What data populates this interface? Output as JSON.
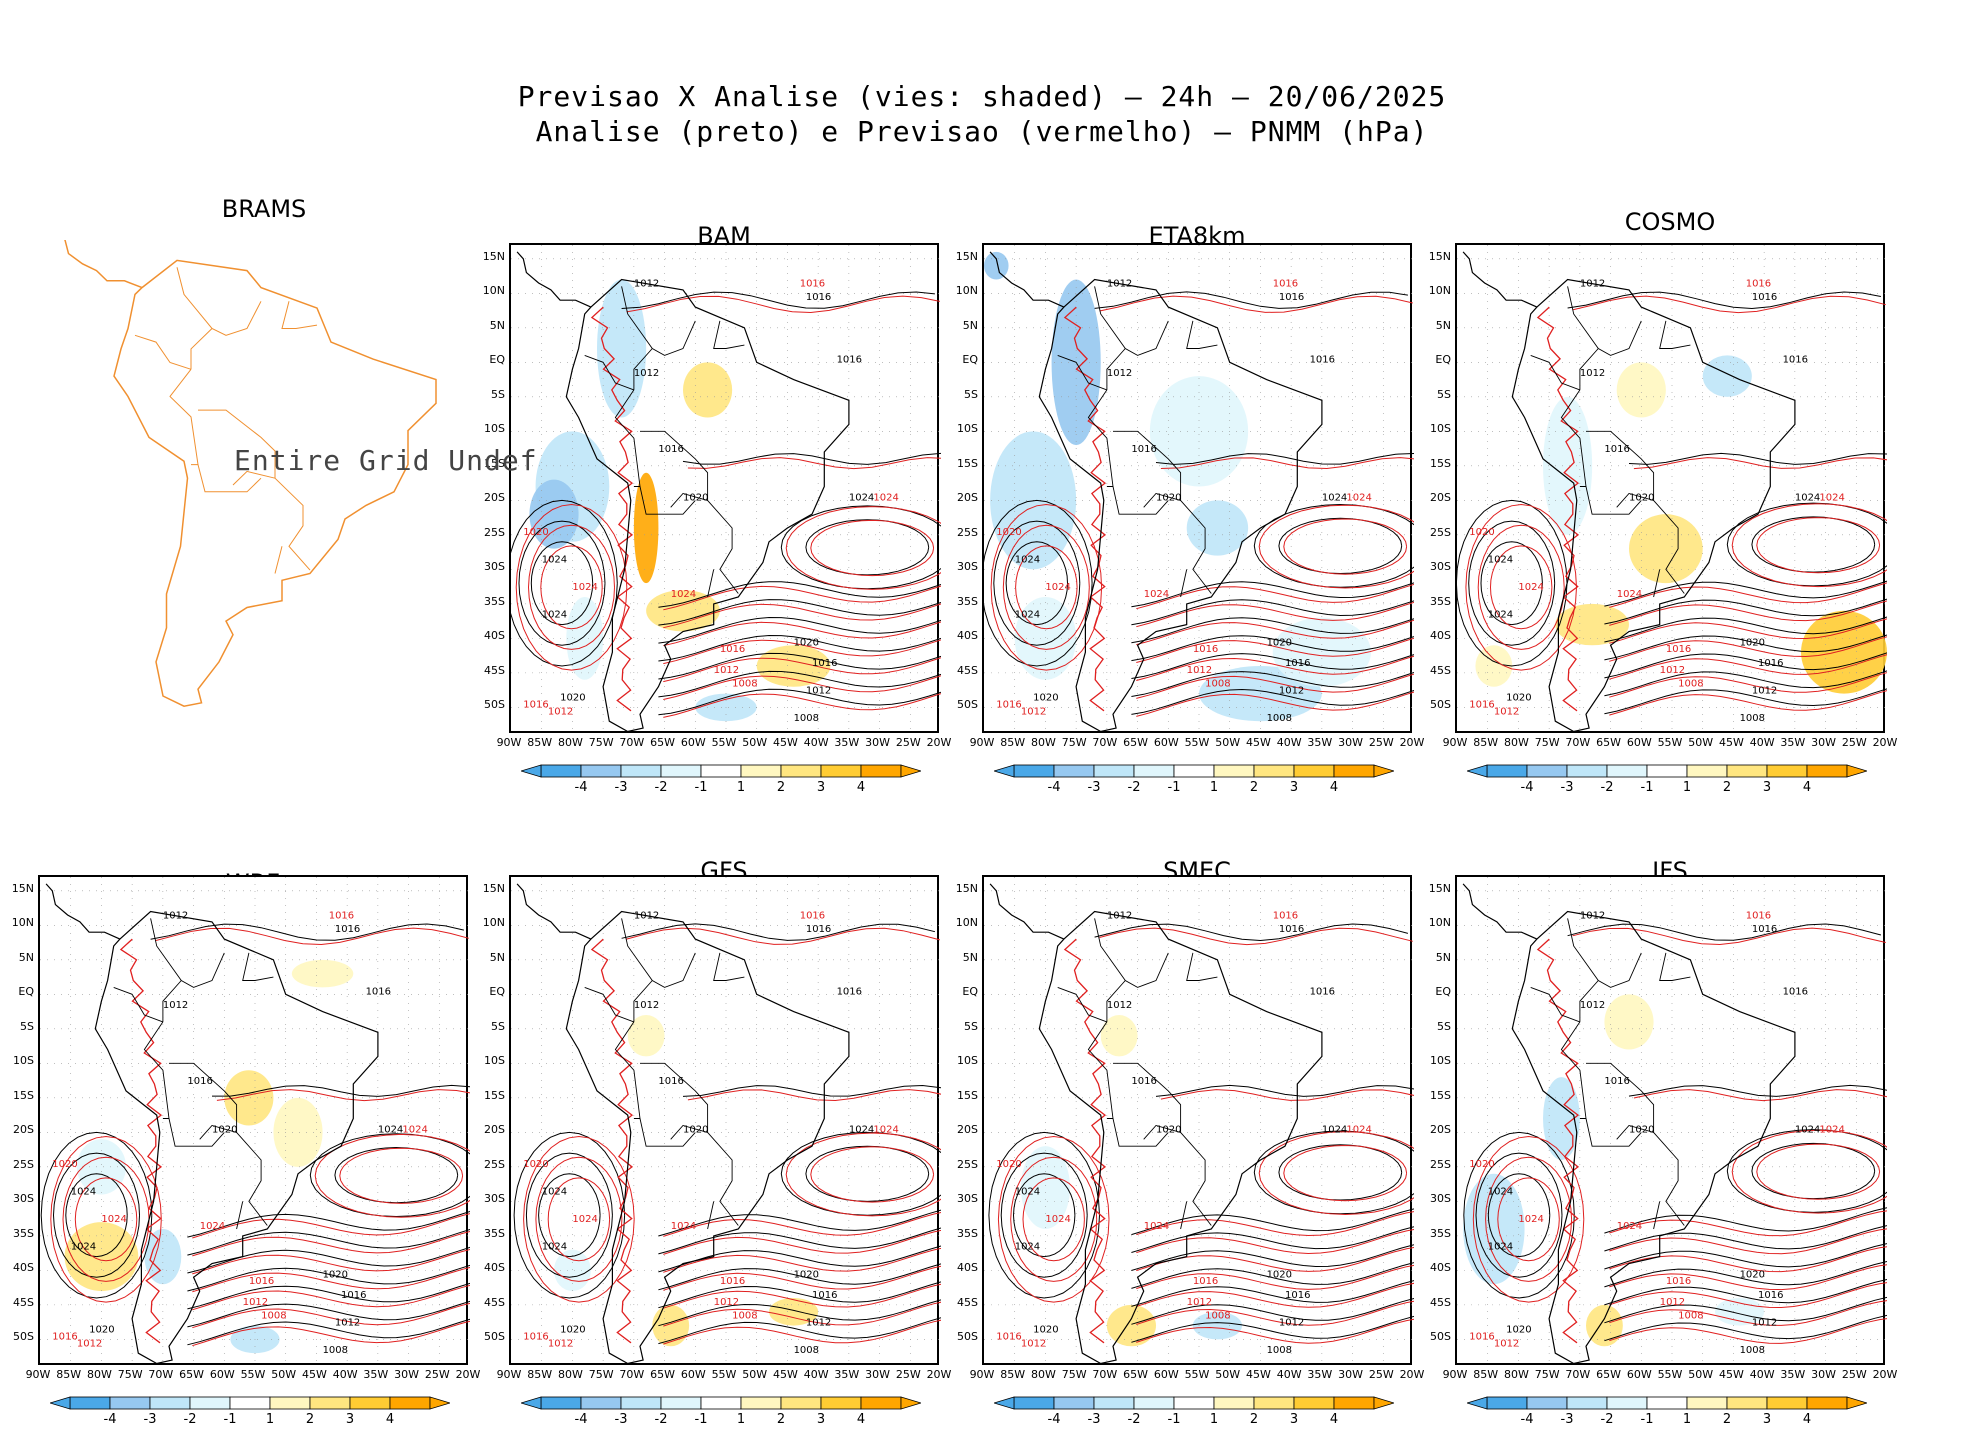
{
  "figure": {
    "title_line1": "Previsao X Analise (vies: shaded) – 24h – 20/06/2025",
    "title_line2": "Analise (preto) e Previsao (vermelho) – PNMM (hPa)",
    "undef_text": "Entire Grid Undef"
  },
  "colors": {
    "analysis_contour": "#000000",
    "forecast_contour": "#e02020",
    "coast": "#000000",
    "brams_map": "#f09030",
    "neg4": "#4aa8e8",
    "neg3": "#96c8f0",
    "neg2": "#bfe6f8",
    "neg1": "#e0f6fc",
    "pos1": "#fff7c0",
    "pos2": "#ffe680",
    "pos3": "#ffcc33",
    "pos4": "#ffa600"
  },
  "chart_data": {
    "type": "map-panels",
    "variable": "PNMM (hPa)",
    "lon_ticks": [
      "90W",
      "85W",
      "80W",
      "75W",
      "70W",
      "65W",
      "60W",
      "55W",
      "50W",
      "45W",
      "40W",
      "35W",
      "30W",
      "25W",
      "20W"
    ],
    "lat_ticks": [
      "15N",
      "10N",
      "5N",
      "EQ",
      "5S",
      "10S",
      "15S",
      "20S",
      "25S",
      "30S",
      "35S",
      "40S",
      "45S",
      "50S"
    ],
    "colorbar_labels": [
      "-4",
      "-3",
      "-2",
      "-1",
      "1",
      "2",
      "3",
      "4"
    ],
    "panels": [
      {
        "name": "BRAMS",
        "status": "undef"
      },
      {
        "name": "BAM"
      },
      {
        "name": "ETA8km"
      },
      {
        "name": "COSMO"
      },
      {
        "name": "WRF"
      },
      {
        "name": "GFS"
      },
      {
        "name": "SMEC"
      },
      {
        "name": "IFS"
      }
    ],
    "contour_labels": [
      {
        "lon": -70,
        "lat": 11,
        "value": "1012",
        "src": "analise"
      },
      {
        "lon": -42,
        "lat": 9,
        "value": "1016",
        "src": "analise"
      },
      {
        "lon": -43,
        "lat": 11,
        "value": "1016",
        "src": "previsao"
      },
      {
        "lon": -37,
        "lat": 0,
        "value": "1016",
        "src": "analise"
      },
      {
        "lon": -70,
        "lat": -2,
        "value": "1012",
        "src": "analise"
      },
      {
        "lon": -66,
        "lat": -13,
        "value": "1016",
        "src": "analise"
      },
      {
        "lon": -62,
        "lat": -20,
        "value": "1020",
        "src": "analise"
      },
      {
        "lon": -35,
        "lat": -20,
        "value": "1024",
        "src": "analise"
      },
      {
        "lon": -31,
        "lat": -20,
        "value": "1024",
        "src": "previsao"
      },
      {
        "lon": -88,
        "lat": -25,
        "value": "1020",
        "src": "previsao"
      },
      {
        "lon": -85,
        "lat": -29,
        "value": "1024",
        "src": "analise"
      },
      {
        "lon": -80,
        "lat": -33,
        "value": "1024",
        "src": "previsao"
      },
      {
        "lon": -85,
        "lat": -37,
        "value": "1024",
        "src": "analise"
      },
      {
        "lon": -64,
        "lat": -34,
        "value": "1024",
        "src": "previsao"
      },
      {
        "lon": -44,
        "lat": -41,
        "value": "1020",
        "src": "analise"
      },
      {
        "lon": -41,
        "lat": -44,
        "value": "1016",
        "src": "analise"
      },
      {
        "lon": -42,
        "lat": -48,
        "value": "1012",
        "src": "analise"
      },
      {
        "lon": -44,
        "lat": -52,
        "value": "1008",
        "src": "analise"
      },
      {
        "lon": -56,
        "lat": -42,
        "value": "1016",
        "src": "previsao"
      },
      {
        "lon": -57,
        "lat": -45,
        "value": "1012",
        "src": "previsao"
      },
      {
        "lon": -54,
        "lat": -47,
        "value": "1008",
        "src": "previsao"
      },
      {
        "lon": -82,
        "lat": -49,
        "value": "1020",
        "src": "analise"
      },
      {
        "lon": -88,
        "lat": -50,
        "value": "1016",
        "src": "previsao"
      },
      {
        "lon": -84,
        "lat": -51,
        "value": "1012",
        "src": "previsao"
      }
    ]
  }
}
